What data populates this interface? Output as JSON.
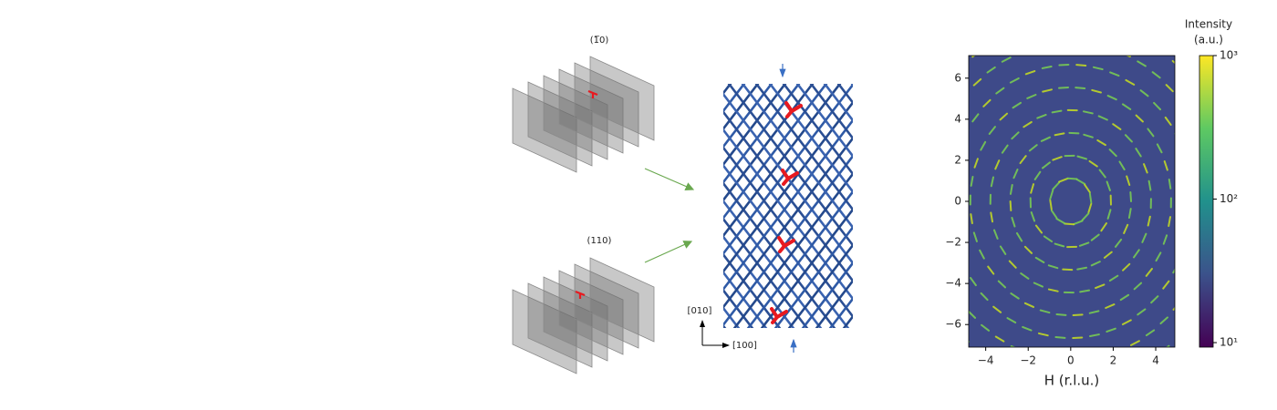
{
  "diagram": {
    "planes": [
      {
        "label": "(1̅0)"
      },
      {
        "label": "(110)"
      }
    ],
    "axes": {
      "y": "[010]",
      "x": "[100]"
    }
  },
  "chart_data": {
    "type": "heatmap",
    "xlabel": "H (r.l.u.)",
    "xlim": [
      -4.8,
      4.9
    ],
    "ylim": [
      -7.1,
      7.1
    ],
    "xticks": [
      {
        "value": -4,
        "label": "−4"
      },
      {
        "value": -2,
        "label": "−2"
      },
      0,
      2,
      4
    ],
    "yticks": [
      {
        "value": -6,
        "label": "−6"
      },
      {
        "value": -4,
        "label": "−4"
      },
      {
        "value": -2,
        "label": "−2"
      },
      0,
      2,
      4,
      6
    ],
    "colorbar": {
      "label": [
        "Intensity",
        "(a.u.)"
      ],
      "scale": "log",
      "lim": [
        9.3,
        1000
      ],
      "ticks": [
        {
          "value": 10,
          "label": "10¹"
        },
        {
          "value": 100,
          "label": "10²"
        },
        {
          "value": 1000,
          "label": "10³"
        }
      ]
    }
  }
}
